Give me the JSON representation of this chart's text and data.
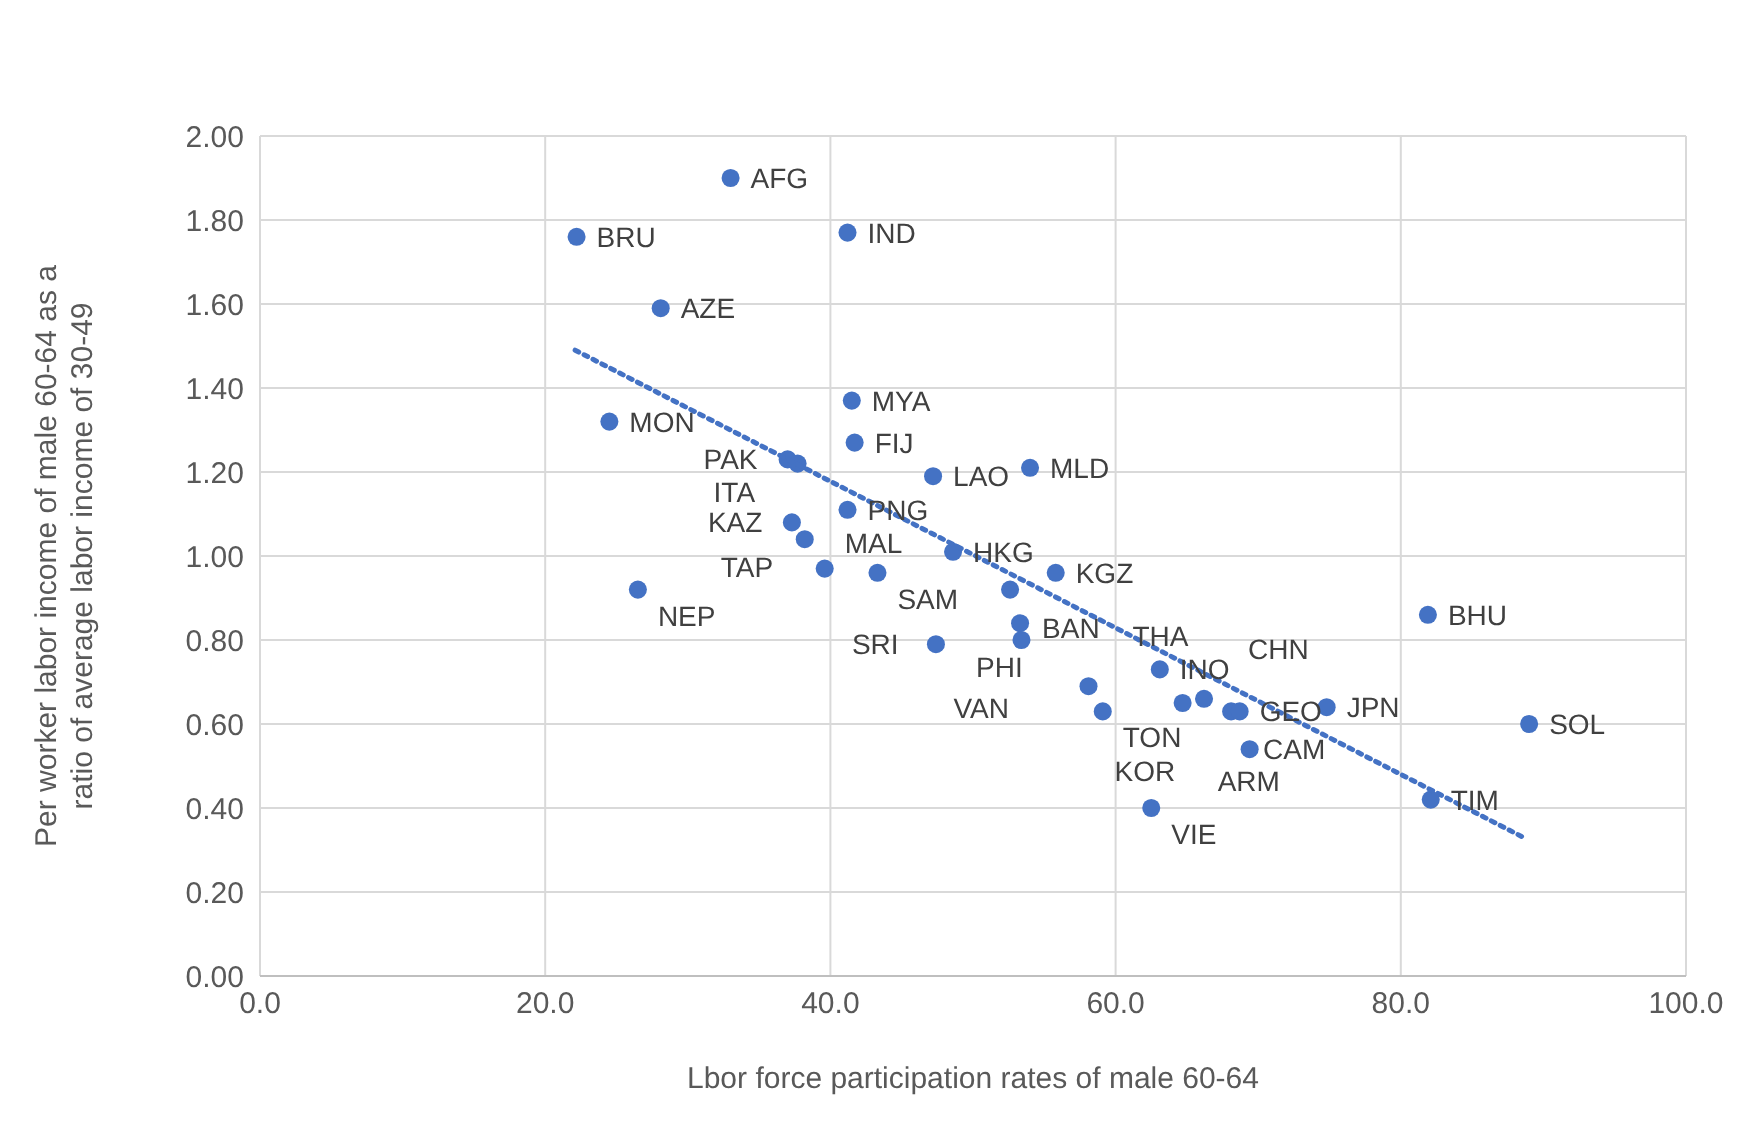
{
  "chart_data": {
    "type": "scatter",
    "xlabel": "Lbor force participation rates of male 60-64",
    "ylabel": "Per worker labor income of male 60-64 as a ratio of average labor income of 30-49",
    "xlim": [
      0,
      100
    ],
    "xticks": [
      {
        "value": 0,
        "label": "0.0"
      },
      {
        "value": 20,
        "label": "20.0"
      },
      {
        "value": 40,
        "label": "40.0"
      },
      {
        "value": 60,
        "label": "60.0"
      },
      {
        "value": 80,
        "label": "80.0"
      },
      {
        "value": 100,
        "label": "100.0"
      }
    ],
    "ylim": [
      0,
      2
    ],
    "yticks": [
      {
        "value": 0,
        "label": "0.00"
      },
      {
        "value": 0.2,
        "label": "0.20"
      },
      {
        "value": 0.4,
        "label": "0.40"
      },
      {
        "value": 0.6,
        "label": "0.60"
      },
      {
        "value": 0.8,
        "label": "0.80"
      },
      {
        "value": 1,
        "label": "1.00"
      },
      {
        "value": 1.2,
        "label": "1.20"
      },
      {
        "value": 1.4,
        "label": "1.40"
      },
      {
        "value": 1.6,
        "label": "1.60"
      },
      {
        "value": 1.8,
        "label": "1.80"
      },
      {
        "value": 2,
        "label": "2.00"
      }
    ],
    "grid": true,
    "series": [
      {
        "marker": "circle",
        "color": "#4472c4",
        "x": [
          33.0,
          22.2,
          41.2,
          28.1,
          41.5,
          41.7,
          24.5,
          37.0,
          37.7,
          47.2,
          54.0,
          41.2,
          37.3,
          38.2,
          39.6,
          43.3,
          48.6,
          26.5,
          55.8,
          52.6,
          53.3,
          53.4,
          47.4,
          63.1,
          58.1,
          59.1,
          64.7,
          66.2,
          68.1,
          68.7,
          74.8,
          69.4,
          62.5,
          82.1,
          81.9,
          89.0
        ],
        "values": [
          1.9,
          1.76,
          1.77,
          1.59,
          1.37,
          1.27,
          1.32,
          1.23,
          1.22,
          1.19,
          1.21,
          1.11,
          1.08,
          1.04,
          0.97,
          0.96,
          1.01,
          0.92,
          0.96,
          0.92,
          0.84,
          0.8,
          0.79,
          0.73,
          0.69,
          0.63,
          0.65,
          0.66,
          0.63,
          0.63,
          0.64,
          0.54,
          0.4,
          0.42,
          0.86,
          0.6
        ]
      },
      {
        "type": "line",
        "marker": "none",
        "color": "#4472c4",
        "line_style": "dotted",
        "x": [
          22.1,
          88.6
        ],
        "values": [
          1.49,
          0.33
        ]
      }
    ],
    "annotations": [
      {
        "text": "AFG",
        "x": 33.0,
        "y": 1.9
      },
      {
        "text": "BRU",
        "x": 22.2,
        "y": 1.76
      },
      {
        "text": "IND",
        "x": 41.2,
        "y": 1.77
      },
      {
        "text": "AZE",
        "x": 28.1,
        "y": 1.59
      },
      {
        "text": "MYA",
        "x": 41.5,
        "y": 1.37
      },
      {
        "text": "FIJ",
        "x": 41.7,
        "y": 1.27
      },
      {
        "text": "MON",
        "x": 24.5,
        "y": 1.32
      },
      {
        "text": "PAK",
        "x": 37.0,
        "y": 1.23
      },
      {
        "text": "ITA",
        "x": 37.7,
        "y": 1.22
      },
      {
        "text": "LAO",
        "x": 47.2,
        "y": 1.19
      },
      {
        "text": "MLD",
        "x": 54.0,
        "y": 1.21
      },
      {
        "text": "PNG",
        "x": 41.2,
        "y": 1.11
      },
      {
        "text": "KAZ",
        "x": 37.3,
        "y": 1.08
      },
      {
        "text": "TAP",
        "x": 38.2,
        "y": 1.04
      },
      {
        "text": "MAL",
        "x": 39.6,
        "y": 0.97
      },
      {
        "text": "SAM",
        "x": 43.3,
        "y": 0.96
      },
      {
        "text": "HKG",
        "x": 48.6,
        "y": 1.01
      },
      {
        "text": "NEP",
        "x": 26.5,
        "y": 0.92
      },
      {
        "text": "KGZ",
        "x": 55.8,
        "y": 0.96
      },
      {
        "text": "BAN",
        "x": 52.6,
        "y": 0.92
      },
      {
        "text": "PHI",
        "x": 53.3,
        "y": 0.84
      },
      {
        "text": "VAN",
        "x": 53.4,
        "y": 0.8
      },
      {
        "text": "SRI",
        "x": 47.4,
        "y": 0.79
      },
      {
        "text": "INO",
        "x": 63.1,
        "y": 0.73
      },
      {
        "text": "THA",
        "x": 58.1,
        "y": 0.69
      },
      {
        "text": "TON",
        "x": 59.1,
        "y": 0.63
      },
      {
        "text": "KOR",
        "x": 64.7,
        "y": 0.65
      },
      {
        "text": "CHN",
        "x": 66.2,
        "y": 0.66
      },
      {
        "text": "CAM",
        "x": 68.1,
        "y": 0.63
      },
      {
        "text": "GEO",
        "x": 68.7,
        "y": 0.63
      },
      {
        "text": "JPN",
        "x": 74.8,
        "y": 0.64
      },
      {
        "text": "ARM",
        "x": 69.4,
        "y": 0.54
      },
      {
        "text": "VIE",
        "x": 62.5,
        "y": 0.4
      },
      {
        "text": "TIM",
        "x": 82.1,
        "y": 0.42
      },
      {
        "text": "BHU",
        "x": 81.9,
        "y": 0.86
      },
      {
        "text": "SOL",
        "x": 89.0,
        "y": 0.6
      }
    ]
  }
}
